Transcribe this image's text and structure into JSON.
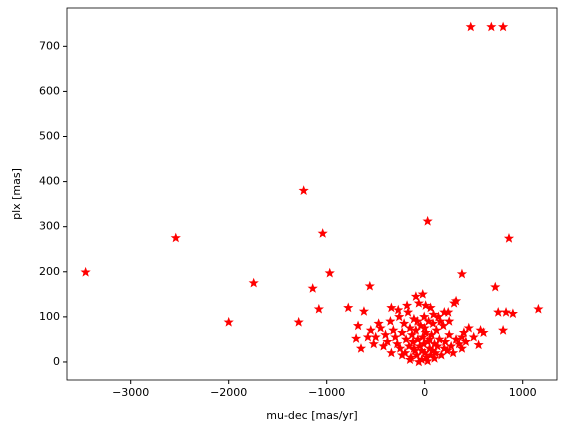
{
  "chart_data": {
    "type": "scatter",
    "marker": "star",
    "color": "#ff0000",
    "x_label": "mu-dec [mas/yr]",
    "y_label": "plx [mas]",
    "xlim": [
      -3650,
      1350
    ],
    "ylim": [
      -40,
      785
    ],
    "xticks": [
      {
        "value": -3000,
        "label": "−3000"
      },
      {
        "value": -2000,
        "label": "−2000"
      },
      {
        "value": -1000,
        "label": "−1000"
      },
      0,
      1000
    ],
    "yticks": [
      0,
      100,
      200,
      300,
      400,
      500,
      600,
      700
    ],
    "x": [
      -3460,
      -2540,
      -2000,
      -1745,
      -1235,
      -1286,
      -1041,
      -969,
      -1143,
      -1080,
      -780,
      -620,
      -560,
      -680,
      -650,
      -700,
      30,
      470,
      680,
      800,
      860,
      380,
      720,
      1160,
      750,
      830,
      900,
      800,
      570,
      600,
      550,
      500,
      300,
      320,
      200,
      250,
      -450,
      -400,
      -380,
      -350,
      -320,
      -300,
      -280,
      -260,
      -250,
      -230,
      -210,
      -200,
      -190,
      -170,
      -160,
      -150,
      -140,
      -130,
      -120,
      -110,
      -100,
      -90,
      -80,
      -70,
      -60,
      -50,
      -40,
      -30,
      -20,
      -10,
      0,
      10,
      20,
      30,
      40,
      50,
      60,
      70,
      80,
      90,
      100,
      110,
      120,
      130,
      150,
      170,
      190,
      210,
      230,
      250,
      270,
      290,
      320,
      350,
      380,
      420,
      -500,
      -420,
      -340,
      -270,
      -180,
      -90,
      -20,
      60,
      140,
      -230,
      -60,
      30,
      100,
      -150,
      160,
      240,
      -340,
      -470,
      -550,
      -520,
      -580,
      400,
      450,
      380,
      -110,
      -30,
      50,
      0,
      -75,
      85,
      -5,
      10,
      200
    ],
    "values": [
      199,
      275,
      88,
      175,
      380,
      88,
      285,
      197,
      163,
      117,
      120,
      112,
      168,
      80,
      30,
      52,
      312,
      743,
      743,
      743,
      274,
      195,
      166,
      117,
      110,
      110,
      107,
      70,
      70,
      65,
      38,
      55,
      130,
      135,
      110,
      90,
      75,
      60,
      45,
      90,
      70,
      55,
      40,
      100,
      30,
      65,
      85,
      20,
      50,
      110,
      35,
      75,
      10,
      60,
      45,
      95,
      25,
      70,
      15,
      50,
      130,
      35,
      80,
      5,
      55,
      40,
      20,
      65,
      10,
      45,
      90,
      30,
      15,
      60,
      25,
      105,
      40,
      20,
      70,
      35,
      50,
      15,
      80,
      45,
      25,
      60,
      35,
      20,
      50,
      40,
      30,
      45,
      55,
      35,
      20,
      115,
      125,
      145,
      150,
      120,
      100,
      15,
      0,
      2,
      8,
      5,
      90,
      110,
      120,
      85,
      70,
      40,
      55,
      65,
      75,
      55,
      30,
      25,
      50,
      75,
      90,
      85,
      100,
      125,
      30
    ]
  }
}
